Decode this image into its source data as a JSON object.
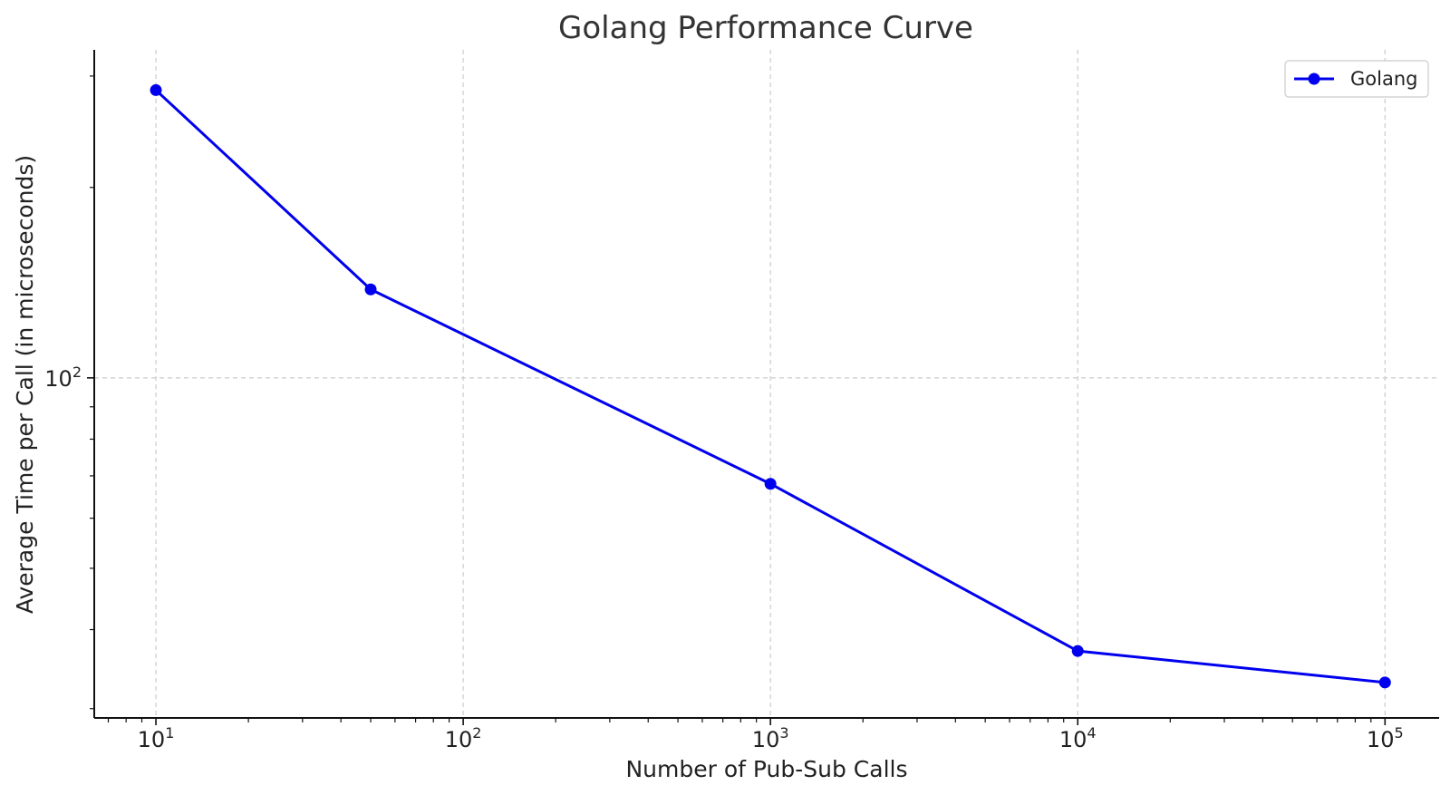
{
  "chart_data": {
    "type": "line",
    "title": "Golang Performance Curve",
    "xlabel": "Number of Pub-Sub Calls",
    "ylabel": "Average Time per Call (in microseconds)",
    "xscale": "log",
    "yscale": "log",
    "grid": true,
    "legend_position": "top-right",
    "x_ticks": [
      {
        "base": "10",
        "exp": "1",
        "value": 10
      },
      {
        "base": "10",
        "exp": "2",
        "value": 100
      },
      {
        "base": "10",
        "exp": "3",
        "value": 1000
      },
      {
        "base": "10",
        "exp": "4",
        "value": 10000
      },
      {
        "base": "10",
        "exp": "5",
        "value": 100000
      }
    ],
    "y_ticks": [
      {
        "base": "10",
        "exp": "2",
        "value": 100
      }
    ],
    "xlim": [
      6.3,
      150000
    ],
    "ylim": [
      29,
      330
    ],
    "series": [
      {
        "name": "Golang",
        "color": "#0000ee",
        "marker": "circle",
        "x": [
          10,
          50,
          1000,
          10000,
          100000
        ],
        "y": [
          285,
          138,
          68,
          37,
          33
        ]
      }
    ]
  }
}
